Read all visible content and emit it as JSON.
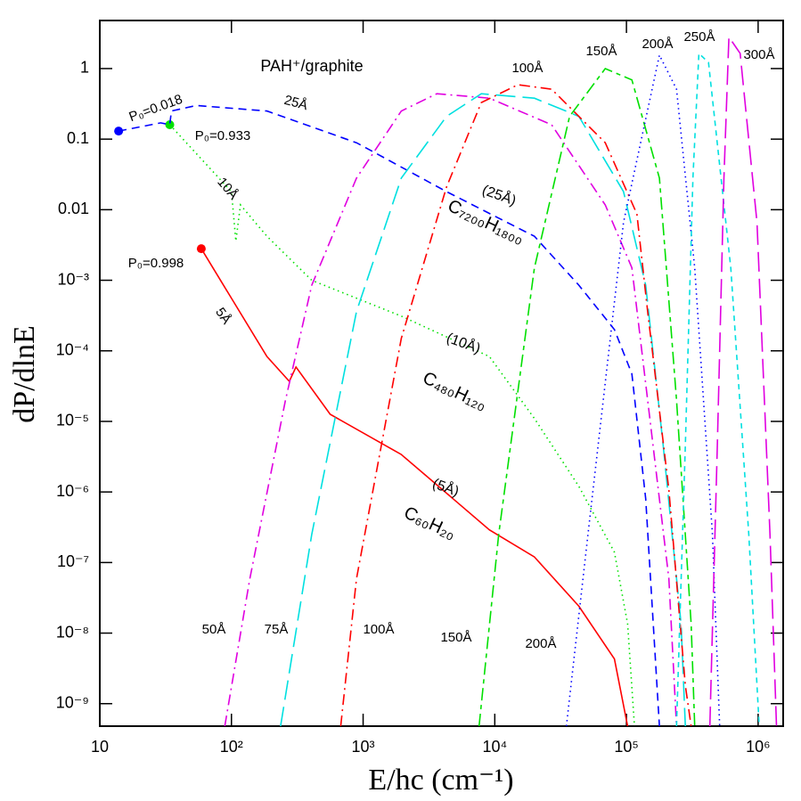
{
  "chart_data": {
    "type": "line",
    "title": "PAH⁺/graphite",
    "xlabel": "E/hc    (cm⁻¹)",
    "ylabel": "dP/dlnE",
    "xscale": "log",
    "yscale": "log",
    "xlim": [
      10,
      1550000
    ],
    "ylim": [
      4.8e-10,
      4.8
    ],
    "xticks": [
      10,
      {
        "value": 100,
        "label": "10²"
      },
      {
        "value": 1000,
        "label": "10³"
      },
      {
        "value": 10000,
        "label": "10⁴"
      },
      {
        "value": 100000,
        "label": "10⁵"
      },
      {
        "value": 1000000,
        "label": "10⁶"
      }
    ],
    "yticks": [
      {
        "value": 1e-09,
        "label": "10⁻⁹"
      },
      {
        "value": 1e-08,
        "label": "10⁻⁸"
      },
      {
        "value": 1e-07,
        "label": "10⁻⁷"
      },
      {
        "value": 1e-06,
        "label": "10⁻⁶"
      },
      {
        "value": 1e-05,
        "label": "10⁻⁵"
      },
      {
        "value": 0.0001,
        "label": "10⁻⁴"
      },
      {
        "value": 0.001,
        "label": "10⁻³"
      },
      0.01,
      0.1,
      1
    ],
    "annotations": [
      "P₀=0.018",
      "P₀=0.933",
      "P₀=0.998",
      "(25Å)",
      "C₇₂₀₀H₁₈₀₀",
      "(10Å)",
      "C₄₈₀H₁₂₀",
      "(5Å)",
      "C₆₀H₂₀"
    ],
    "series": [
      {
        "name": "5Å",
        "color": "#ff0000",
        "style": "solid",
        "start_marker": true,
        "x": [
          59,
          186,
          275,
          309,
          562,
          1950,
          9100,
          20000,
          43500,
          81000,
          102000
        ],
        "values": [
          0.0028,
          8.3e-05,
          3.7e-05,
          5.9e-05,
          1.26e-05,
          3.4e-06,
          2.9e-07,
          1.2e-07,
          2.4e-08,
          4.3e-09,
          4.8e-10
        ]
      },
      {
        "name": "10Å",
        "color": "#00e000",
        "style": "dotted",
        "start_marker": true,
        "x": [
          34,
          100,
          108,
          117,
          186,
          407,
          1950,
          9100,
          20000,
          43500,
          81000,
          102000,
          115000
        ],
        "values": [
          0.16,
          0.018,
          0.0036,
          0.0117,
          0.0042,
          0.001,
          0.00031,
          8.3e-05,
          1.1e-05,
          1.2e-06,
          1.4e-07,
          1.35e-08,
          4.8e-10
        ]
      },
      {
        "name": "25Å",
        "color": "#0000ff",
        "style": "dashed",
        "start_marker": true,
        "x": [
          13.9,
          29,
          34,
          35,
          54,
          186,
          890,
          4300,
          20000,
          43500,
          81000,
          110000,
          140000,
          178000
        ],
        "values": [
          0.13,
          0.17,
          0.16,
          0.25,
          0.3,
          0.25,
          0.089,
          0.018,
          0.0042,
          0.00085,
          0.0002,
          4.7e-05,
          8e-07,
          4.8e-10
        ]
      },
      {
        "name": "50Å",
        "color": "#e000e0",
        "style": "dashdot",
        "x": [
          89,
          138,
          257,
          407,
          890,
          1950,
          3630,
          9100,
          27000,
          69000,
          110000,
          145000,
          210000,
          240000
        ],
        "values": [
          4.8e-10,
          5.9e-08,
          2e-05,
          0.00085,
          0.028,
          0.25,
          0.44,
          0.38,
          0.16,
          0.0117,
          0.0015,
          2e-05,
          5.9e-08,
          4.8e-10
        ]
      },
      {
        "name": "75Å",
        "color": "#00e0e0",
        "style": "longdash",
        "x": [
          236,
          407,
          890,
          1950,
          4300,
          7900,
          20000,
          43500,
          95000,
          140000,
          190000,
          260000,
          280000
        ],
        "values": [
          4.8e-10,
          2.5e-07,
          0.00036,
          0.028,
          0.21,
          0.44,
          0.38,
          0.21,
          0.018,
          0.00085,
          4.6e-06,
          1.35e-08,
          4.8e-10
        ]
      },
      {
        "name": "100Å",
        "color": "#ff0000",
        "style": "dashdot",
        "x": [
          676,
          890,
          1950,
          4300,
          7900,
          15000,
          27000,
          69000,
          120000,
          145000,
          210000,
          280000,
          310000
        ],
        "values": [
          4.8e-10,
          5.9e-08,
          0.00015,
          0.021,
          0.33,
          0.59,
          0.51,
          0.089,
          0.0087,
          0.00036,
          1.07e-06,
          1.8e-09,
          4.8e-10
        ]
      },
      {
        "name": "150Å",
        "color": "#00e000",
        "style": "shortlong",
        "x": [
          7600,
          10700,
          20000,
          37000,
          69000,
          110000,
          178000,
          240000,
          310000,
          330000
        ],
        "values": [
          4.8e-10,
          2.5e-07,
          0.0015,
          0.21,
          1,
          0.69,
          0.028,
          2e-05,
          1.35e-08,
          4.8e-10
        ]
      },
      {
        "name": "200Å",
        "color": "#0000ff",
        "style": "dotted",
        "x": [
          35000,
          51000,
          95000,
          178000,
          240000,
          330000,
          450000,
          510000
        ],
        "values": [
          4.8e-10,
          2.5e-07,
          0.0066,
          1.55,
          0.51,
          0.0015,
          2.5e-07,
          4.8e-10
        ]
      },
      {
        "name": "250Å",
        "color": "#00e0e0",
        "style": "shortdash",
        "x": [
          240000,
          280000,
          320000,
          355000,
          420000,
          620000,
          850000,
          1020000
        ],
        "values": [
          4.8e-10,
          4.6e-06,
          0.028,
          1.64,
          1.22,
          0.0015,
          2.5e-07,
          4.8e-10
        ]
      },
      {
        "name": "300Å",
        "color": "#e000e0",
        "style": "longdash",
        "x": [
          430000,
          490000,
          550000,
          600000,
          730000,
          980000,
          1230000,
          1380000
        ],
        "values": [
          4.8e-10,
          4.6e-06,
          0.028,
          2.8,
          1.64,
          0.0066,
          2.5e-07,
          4.8e-10
        ]
      }
    ]
  }
}
